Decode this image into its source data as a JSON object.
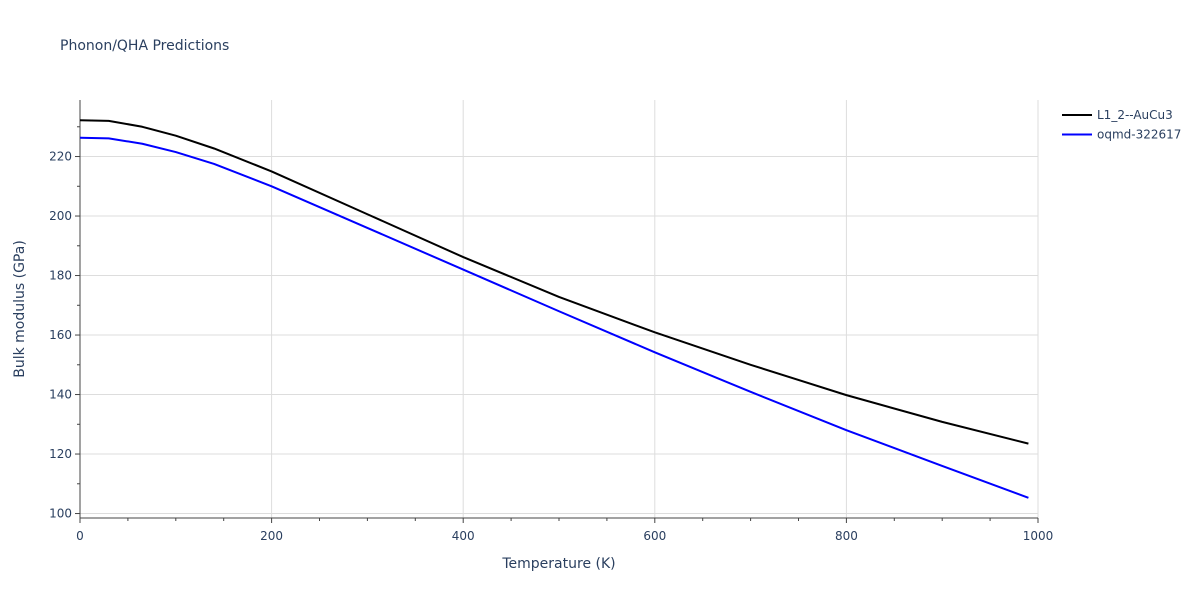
{
  "chart_data": {
    "type": "line",
    "title": "Phonon/QHA Predictions",
    "xlabel": "Temperature (K)",
    "ylabel": "Bulk modulus (GPa)",
    "xlim": [
      0,
      1000
    ],
    "ylim": [
      98.5,
      239
    ],
    "x_ticks": [
      0,
      200,
      400,
      600,
      800,
      1000
    ],
    "y_ticks": [
      100,
      120,
      140,
      160,
      180,
      200,
      220
    ],
    "grid": true,
    "legend_position": "top-right outside",
    "series": [
      {
        "name": "L1_2--AuCu3",
        "color": "#000000",
        "x": [
          0,
          30,
          65,
          100,
          140,
          200,
          300,
          400,
          500,
          600,
          700,
          800,
          900,
          990
        ],
        "y": [
          232.2,
          232.0,
          230.0,
          227.0,
          222.7,
          215.0,
          200.6,
          186.2,
          172.8,
          160.9,
          150.0,
          139.8,
          130.8,
          123.5
        ]
      },
      {
        "name": "oqmd-322617",
        "color": "#0000ff",
        "x": [
          0,
          30,
          65,
          100,
          140,
          200,
          300,
          400,
          500,
          600,
          700,
          800,
          900,
          990
        ],
        "y": [
          226.3,
          226.1,
          224.3,
          221.5,
          217.5,
          210.0,
          196.0,
          182.0,
          168.0,
          154.2,
          140.9,
          128.0,
          116.0,
          105.3
        ]
      }
    ]
  }
}
